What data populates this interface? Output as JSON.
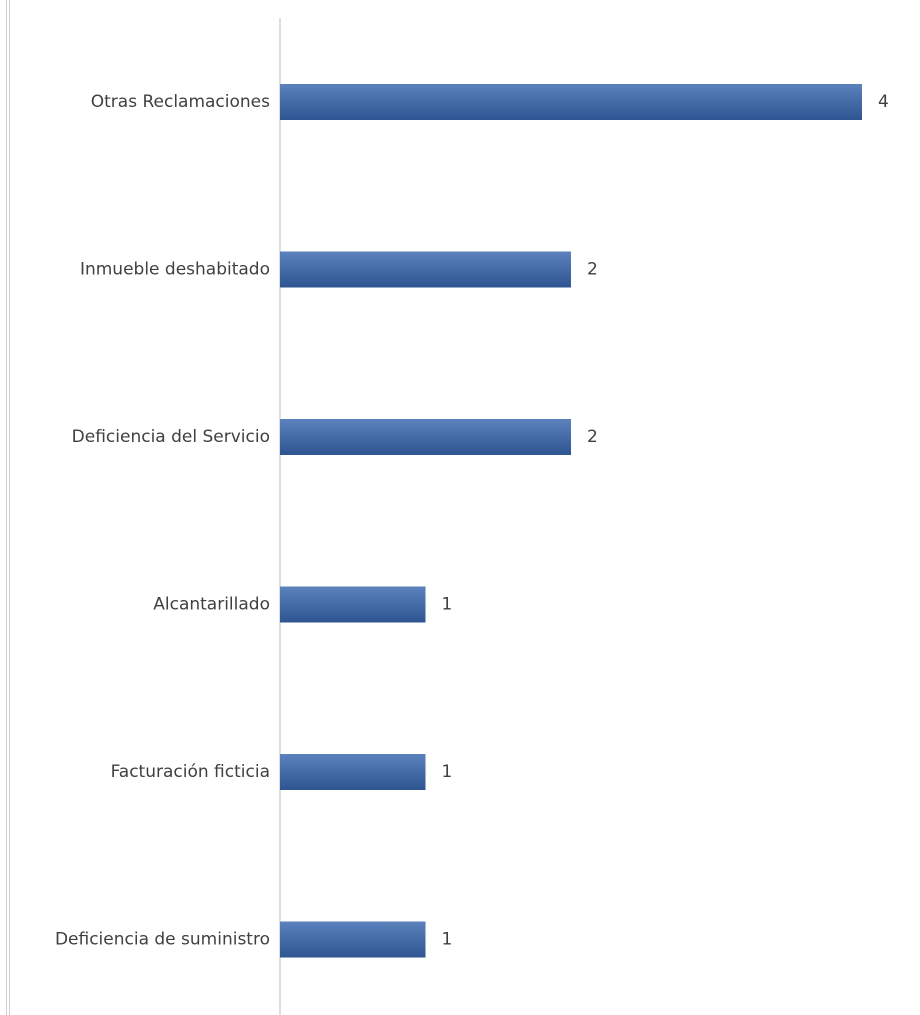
{
  "chart_data": {
    "type": "bar",
    "orientation": "horizontal",
    "categories": [
      "Otras Reclamaciones",
      "Inmueble deshabitado",
      "Deficiencia del Servicio",
      "Alcantarillado",
      "Facturación ficticia",
      "Deficiencia de suministro"
    ],
    "values": [
      4,
      2,
      2,
      1,
      1,
      1
    ],
    "title": "",
    "xlabel": "",
    "ylabel": "",
    "xlim": [
      0,
      4
    ],
    "grid": false,
    "legend": "none",
    "data_labels": true,
    "colors": {
      "bar_top": "#5b82bd",
      "bar_bottom": "#2e5591",
      "axis": "#d4d4d4",
      "text": "#404040"
    }
  }
}
